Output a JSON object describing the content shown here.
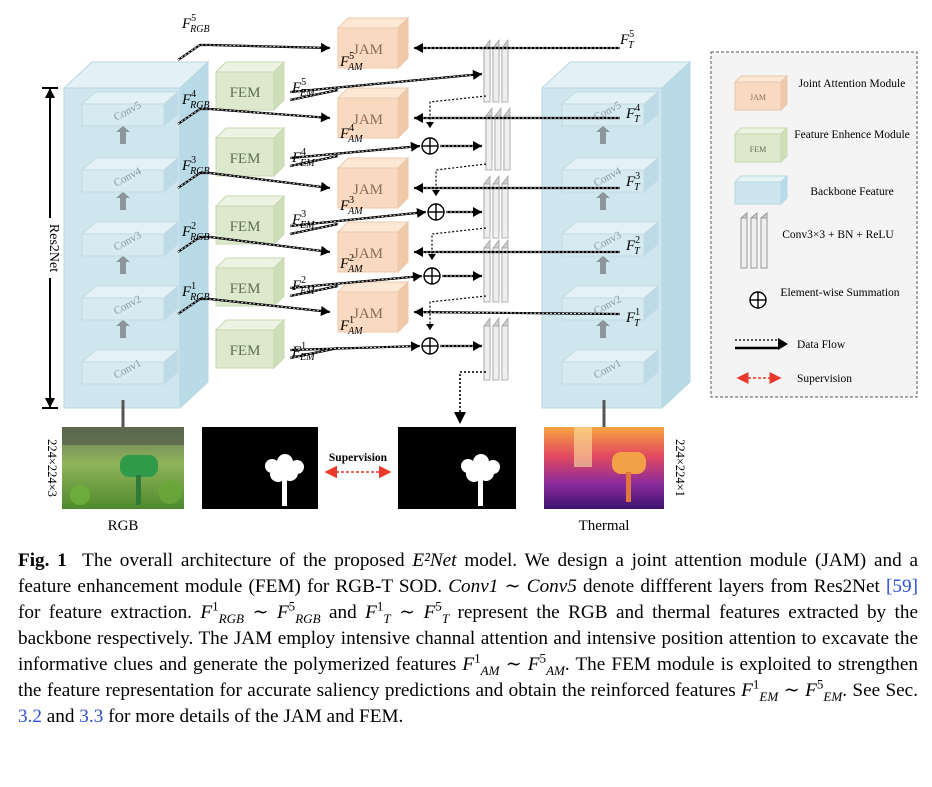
{
  "diagram": {
    "backbone_label": "Res2Net",
    "conv_labels": [
      "Conv5",
      "Conv4",
      "Conv3",
      "Conv2",
      "Conv1"
    ],
    "jam_label": "JAM",
    "fem_label": "FEM",
    "rgb_label": "RGB",
    "thermal_label": "Thermal",
    "supervision_label": "Supervision",
    "rgb_size": "224×224×3",
    "thermal_size": "224×224×1",
    "feature_labels": {
      "rgb": [
        "5",
        "4",
        "3",
        "2",
        "1"
      ],
      "t": [
        "5",
        "4",
        "3",
        "2",
        "1"
      ],
      "em": [
        "5",
        "4",
        "3",
        "2",
        "1"
      ],
      "am": [
        "5",
        "4",
        "3",
        "2",
        "1"
      ]
    }
  },
  "legend": {
    "items": [
      {
        "text": "Joint Attention Module",
        "swatch": "JAM"
      },
      {
        "text": "Feature Enhence Module",
        "swatch": "FEM"
      },
      {
        "text": "Backbone Feature",
        "swatch": ""
      },
      {
        "text": "Conv3×3 + BN + ReLU",
        "swatch": ""
      },
      {
        "text": "Element-wise Summation",
        "swatch": ""
      },
      {
        "text": "Data Flow",
        "swatch": ""
      },
      {
        "text": "Supervision",
        "swatch": ""
      }
    ]
  },
  "caption": {
    "fig_label": "Fig. 1",
    "text_1": "The overall architecture of the proposed ",
    "model_name": "E²Net",
    "text_2": " model. We design a joint attention module (JAM) and a feature enhancement module (FEM) for RGB-T SOD. ",
    "conv_range": "Conv1 ∼ Conv5",
    "text_3": " denote diffferent layers from Res2Net ",
    "ref_59": "[59]",
    "text_4": " for feature extraction. ",
    "text_5": " represent the RGB and thermal features extracted by the backbone respectively. The JAM employ intensive channal attention and intensive position attention to excavate the informative clues and generate the polymerized features ",
    "text_6": ". The FEM module is exploited to strengthen the feature representation for accurate saliency predictions and obtain the reinforced features ",
    "text_7": ". See Sec. ",
    "ref_32": "3.2",
    "text_8": " and ",
    "ref_33": "3.3",
    "text_9": " for more details of the JAM and FEM."
  },
  "colors": {
    "jam": "#f9d9c0",
    "fem": "#dde9cd",
    "backbone": "#cde6ee",
    "supervision": "#e8392a",
    "link": "#2b4fd6"
  }
}
